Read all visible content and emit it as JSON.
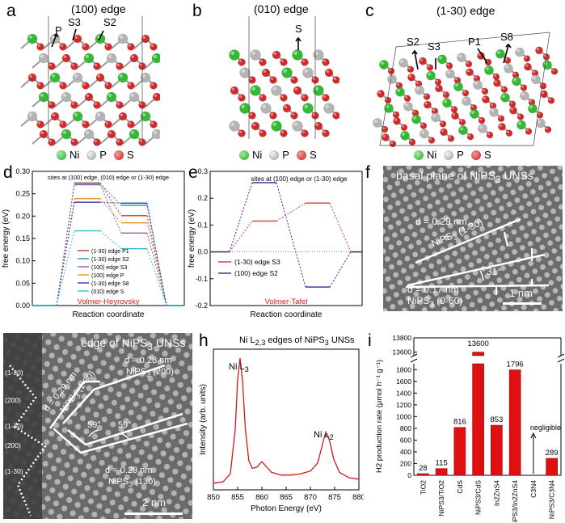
{
  "panels": {
    "a": {
      "letter": "a",
      "title": "(100) edge",
      "labels": [
        "P",
        "S3",
        "S2"
      ]
    },
    "b": {
      "letter": "b",
      "title": "(010) edge",
      "labels": [
        "S"
      ]
    },
    "c": {
      "letter": "c",
      "title": "(1-30) edge",
      "labels": [
        "S2",
        "S3",
        "P1",
        "S8"
      ]
    },
    "legend": {
      "ni": "Ni",
      "p": "P",
      "s": "S"
    },
    "colors": {
      "ni": "#35b935",
      "p": "#b4b4b4",
      "s": "#cf2b2b",
      "bond": "#9a9a9a"
    },
    "d": {
      "letter": "d",
      "note": "sites at (100) edge, (010) edge or (1-30) edge",
      "reaction_label": "Volmer-Heyrovsky"
    },
    "e": {
      "letter": "e",
      "note": "sites at (100) edge or (1-30) edge",
      "reaction_label": "Volmer-Tafel"
    },
    "f": {
      "letter": "f",
      "title": "basal plane of NiPS",
      "title_sub": "3",
      "title_tail": " UNSs",
      "d1": "d = 0.29 nm",
      "plane1": "NiPS",
      "plane1_sub": "3",
      "plane1_tail": " (1-30)",
      "angle": "31°",
      "d2": "d = 0.17 nm",
      "plane2": "NiPS",
      "plane2_sub": "3",
      "plane2_tail": " (0-60)",
      "scale": "1 nm"
    },
    "g": {
      "letter": "g",
      "title": "edge of NiPS",
      "title_sub": "3",
      "title_tail": " UNSs",
      "edge_labels": [
        "(1-30)",
        "(200)",
        "(1-30)",
        "(200)",
        "(1-30)"
      ],
      "d_left": "d = 0.29 nm",
      "plane_left": "NiPS",
      "plane_left_sub": "3",
      "plane_left_tail": " (1-30)",
      "d_top": "d = 0.28 nm",
      "plane_top": "NiPS",
      "plane_top_sub": "3",
      "plane_top_tail": " (200)",
      "d_bottom": "d = 0.29 nm",
      "plane_bottom": "NiPS",
      "plane_bottom_sub": "3",
      "plane_bottom_tail": " (130)",
      "angle1": "59°",
      "angle2": "59°",
      "scale": "2 nm"
    },
    "h": {
      "letter": "h",
      "title_pre": "Ni L",
      "title_sub": "2,3",
      "title_mid": " edges of NiPS",
      "title_sub2": "3",
      "title_tail": " UNSs",
      "peak1_pre": "Ni L",
      "peak1_sub": "3",
      "peak2_pre": "Ni L",
      "peak2_sub": "2"
    },
    "i": {
      "letter": "i",
      "annotation": "negligible"
    }
  },
  "chart_data": [
    {
      "panel": "d",
      "type": "line",
      "xlabel": "Reaction coordinate",
      "ylabel": "free energy (eV)",
      "ylim": [
        0.0,
        0.3
      ],
      "yticks": [
        "0.00",
        "0.05",
        "0.10",
        "0.15",
        "0.20",
        "0.25",
        "0.30"
      ],
      "ytick_values": [
        0.0,
        0.05,
        0.1,
        0.15,
        0.2,
        0.25,
        0.3
      ],
      "series": [
        {
          "name": "(1-30) edge P1",
          "color": "#c0392b",
          "values": [
            0,
            0.274,
            0.201,
            0
          ]
        },
        {
          "name": "(1-30) edge S2",
          "color": "#2a9d8f",
          "values": [
            0,
            0.273,
            0.224,
            0
          ]
        },
        {
          "name": "(100) edge S3",
          "color": "#9b59b6",
          "values": [
            0,
            0.27,
            0.162,
            0
          ]
        },
        {
          "name": "(100) edge P",
          "color": "#e69b23",
          "values": [
            0,
            0.239,
            0.185,
            0
          ]
        },
        {
          "name": "(1-30) edge S8",
          "color": "#2c3e9e",
          "values": [
            0,
            0.231,
            0.229,
            0
          ]
        },
        {
          "name": "(010) edge S",
          "color": "#2fc0d6",
          "values": [
            0,
            0.167,
            0.127,
            0
          ]
        }
      ]
    },
    {
      "panel": "e",
      "type": "line",
      "xlabel": "Reaction coordinate",
      "ylabel": "free energy (eV)",
      "ylim": [
        -0.2,
        0.3
      ],
      "yticks": [
        "-0.2",
        "-0.1",
        "0.0",
        "0.1",
        "0.2",
        "0.3"
      ],
      "ytick_values": [
        -0.2,
        -0.1,
        0.0,
        0.1,
        0.2,
        0.3
      ],
      "series": [
        {
          "name": "(1-30) edge S3",
          "color": "#d63a3a",
          "values": [
            0,
            0.115,
            0.182,
            0
          ]
        },
        {
          "name": "(100) edge S2",
          "color": "#2b2b8f",
          "values": [
            0,
            0.258,
            -0.131,
            0
          ]
        }
      ]
    },
    {
      "panel": "h",
      "type": "line",
      "xlabel": "Photon Energy (eV)",
      "ylabel": "Intensity (arb. units)",
      "xlim": [
        850,
        880
      ],
      "xticks": [
        "850",
        "855",
        "860",
        "865",
        "870",
        "875",
        "880"
      ],
      "xtick_values": [
        850,
        855,
        860,
        865,
        870,
        875,
        880
      ],
      "color": "#cc1a1a",
      "x": [
        850,
        852,
        853.5,
        854.5,
        855,
        855.5,
        856,
        856.6,
        857.3,
        858,
        859,
        860,
        861,
        862,
        864,
        866,
        868,
        870,
        871.5,
        872.3,
        873,
        873.4,
        874,
        874.8,
        876,
        878,
        880
      ],
      "y": [
        0.05,
        0.06,
        0.12,
        0.45,
        0.82,
        0.98,
        0.82,
        0.45,
        0.22,
        0.16,
        0.17,
        0.21,
        0.17,
        0.13,
        0.11,
        0.11,
        0.12,
        0.14,
        0.2,
        0.31,
        0.41,
        0.42,
        0.36,
        0.23,
        0.13,
        0.09,
        0.08
      ]
    },
    {
      "panel": "i",
      "type": "bar",
      "ylabel": "H2 production rate (μmol h⁻¹ g⁻¹)",
      "categories": [
        "TiO2",
        "NiPS3/TiO2",
        "CdS",
        "NiPS3/CdS",
        "In2ZnS4",
        "NiPS3/In2ZnS4",
        "C3N4",
        "NiPS3/C3N4"
      ],
      "values": [
        28,
        115,
        816,
        13600,
        853,
        1796,
        0,
        289
      ],
      "value_labels": [
        "28",
        "115",
        "816",
        "13600",
        "853",
        "1796",
        "",
        "289"
      ],
      "yticks_low": [
        "0",
        "200",
        "400",
        "600",
        "800",
        "1000",
        "1200",
        "1400",
        "1600",
        "1800"
      ],
      "yticks_low_values": [
        0,
        200,
        400,
        600,
        800,
        1000,
        1200,
        1400,
        1600,
        1800
      ],
      "yticks_high": [
        "13600",
        "13800"
      ],
      "yticks_high_values": [
        13600,
        13800
      ],
      "ylim_low": [
        0,
        1900
      ],
      "ylim_high": [
        13550,
        13800
      ],
      "bar_color": "#e01010"
    }
  ]
}
